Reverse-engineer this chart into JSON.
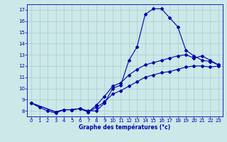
{
  "xlabel": "Graphe des températures (°c)",
  "background_color": "#cce8e8",
  "grid_color": "#aacccc",
  "line_color": "#0000aa",
  "xlim": [
    -0.5,
    23.5
  ],
  "ylim": [
    7.5,
    17.5
  ],
  "yticks": [
    8,
    9,
    10,
    11,
    12,
    13,
    14,
    15,
    16,
    17
  ],
  "xticks": [
    0,
    1,
    2,
    3,
    4,
    5,
    6,
    7,
    8,
    9,
    10,
    11,
    12,
    13,
    14,
    15,
    16,
    17,
    18,
    19,
    20,
    21,
    22,
    23
  ],
  "line1_x": [
    0,
    1,
    2,
    3,
    4,
    5,
    6,
    7,
    8,
    9,
    10,
    11,
    12,
    13,
    14,
    15,
    16,
    17,
    18,
    19,
    20,
    21,
    22,
    23
  ],
  "line1_y": [
    8.7,
    8.3,
    8.0,
    7.8,
    8.1,
    8.1,
    8.2,
    8.0,
    8.0,
    8.7,
    10.0,
    10.3,
    12.5,
    13.7,
    16.6,
    17.1,
    17.1,
    16.3,
    15.5,
    13.4,
    12.9,
    12.5,
    12.4,
    12.1
  ],
  "line2_x": [
    0,
    3,
    4,
    5,
    6,
    7,
    8,
    9,
    10,
    11,
    12,
    13,
    14,
    15,
    16,
    17,
    18,
    19,
    20,
    21,
    22,
    23
  ],
  "line2_y": [
    8.7,
    7.9,
    8.1,
    8.1,
    8.2,
    7.9,
    8.5,
    9.3,
    10.2,
    10.5,
    11.2,
    11.7,
    12.1,
    12.3,
    12.5,
    12.7,
    12.9,
    13.0,
    12.7,
    12.9,
    12.5,
    12.1
  ],
  "line3_x": [
    0,
    3,
    4,
    5,
    6,
    7,
    8,
    9,
    10,
    11,
    12,
    13,
    14,
    15,
    16,
    17,
    18,
    19,
    20,
    21,
    22,
    23
  ],
  "line3_y": [
    8.7,
    7.9,
    8.1,
    8.1,
    8.2,
    7.9,
    8.3,
    8.8,
    9.5,
    9.8,
    10.2,
    10.6,
    11.0,
    11.2,
    11.4,
    11.5,
    11.7,
    11.9,
    12.0,
    12.0,
    11.9,
    12.0
  ],
  "xlabel_fontsize": 5.5,
  "tick_fontsize": 5,
  "lw": 0.8,
  "ms": 2.0
}
